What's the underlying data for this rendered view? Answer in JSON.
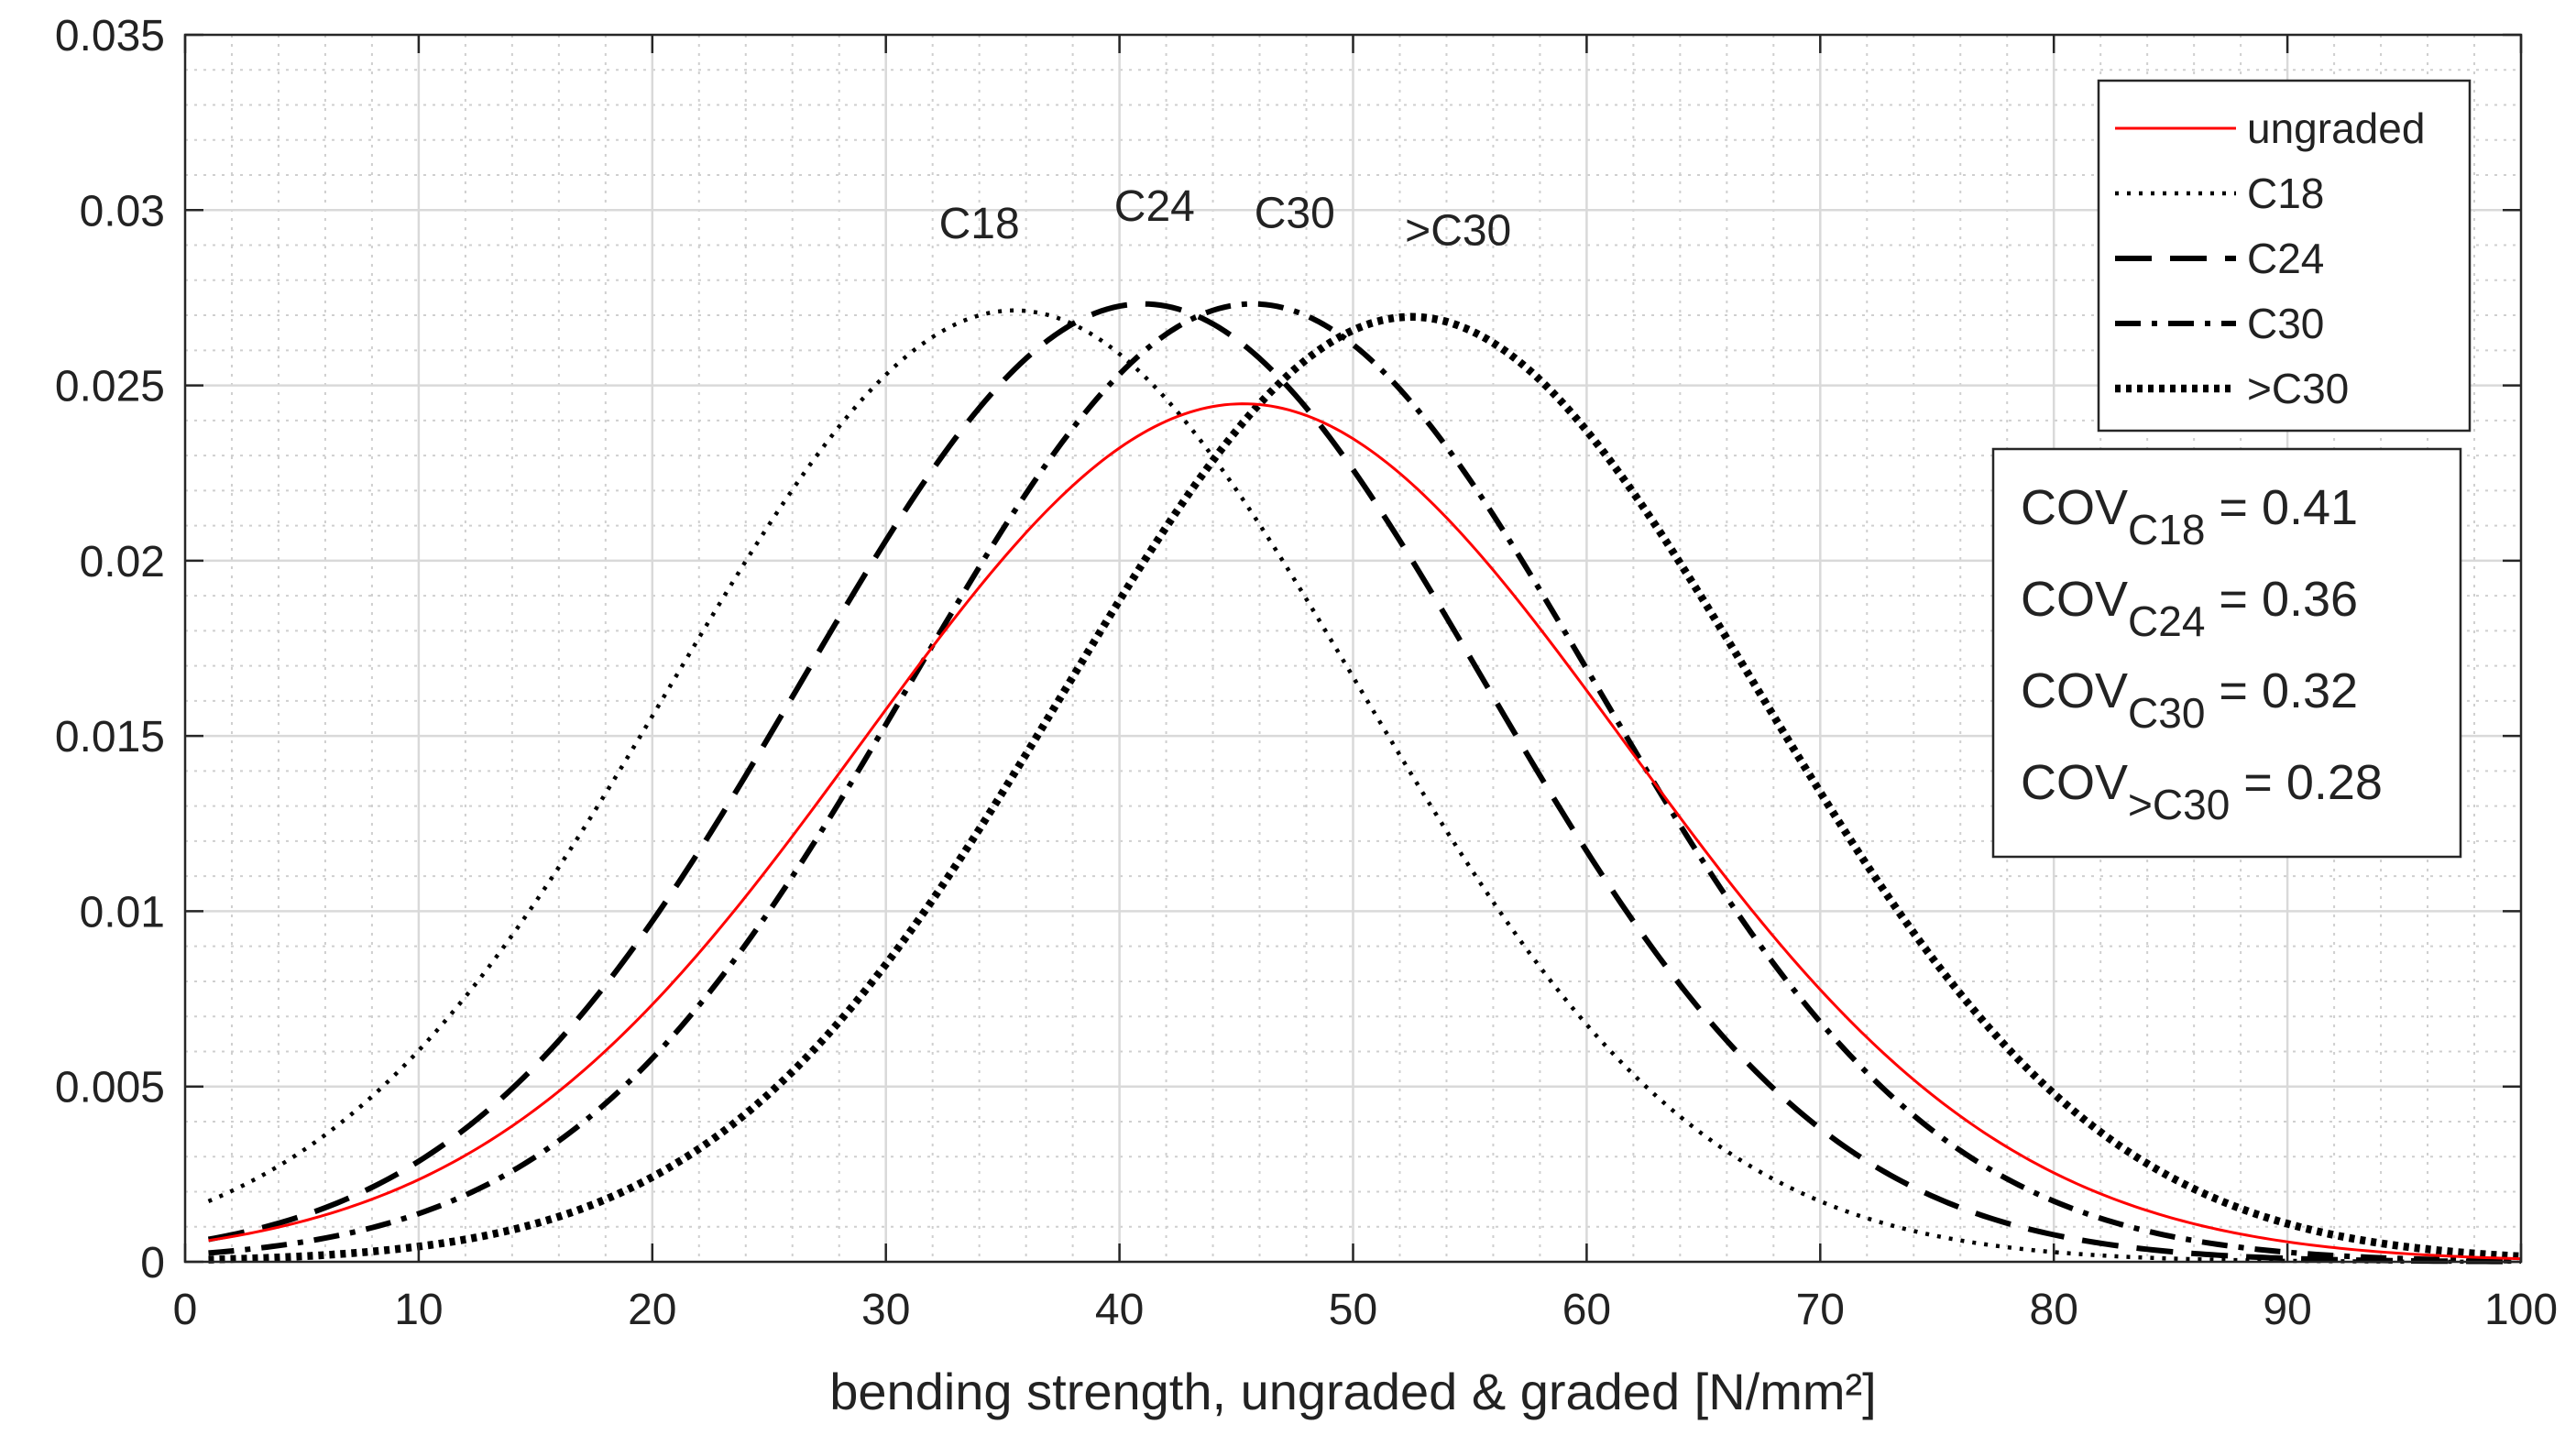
{
  "chart_data": {
    "type": "line",
    "xlabel": "bending strength, ungraded & graded [N/mm²]",
    "ylabel": "",
    "xlim": [
      0,
      100
    ],
    "ylim": [
      0,
      0.035
    ],
    "xticks": [
      0,
      10,
      20,
      30,
      40,
      50,
      60,
      70,
      80,
      90,
      100
    ],
    "xtick_labels": [
      "0",
      "10",
      "20",
      "30",
      "40",
      "50",
      "60",
      "70",
      "80",
      "90",
      "100"
    ],
    "yticks": [
      0,
      0.005,
      0.01,
      0.015,
      0.02,
      0.025,
      0.03,
      0.035
    ],
    "ytick_labels": [
      "0",
      "0.005",
      "0.01",
      "0.015",
      "0.02",
      "0.025",
      "0.03",
      "0.035"
    ],
    "grid": true,
    "minor_grid": true,
    "legend_position": "top-right",
    "series": [
      {
        "name": "ungraded",
        "distribution": "normal",
        "mean": 45.3,
        "sd": 16.3,
        "x_range": [
          1,
          100
        ],
        "color": "#ff0000",
        "style": "solid"
      },
      {
        "name": "C18",
        "distribution": "normal",
        "mean": 35.5,
        "sd": 14.7,
        "x_range": [
          1,
          100
        ],
        "color": "#000000",
        "style": "dotted"
      },
      {
        "name": "C24",
        "distribution": "normal",
        "mean": 41.0,
        "sd": 14.6,
        "x_range": [
          1,
          100
        ],
        "color": "#000000",
        "style": "dashed"
      },
      {
        "name": "C30",
        "distribution": "normal",
        "mean": 45.7,
        "sd": 14.6,
        "x_range": [
          1,
          100
        ],
        "color": "#000000",
        "style": "dashdot"
      },
      {
        "name": ">C30",
        "distribution": "normal",
        "mean": 52.5,
        "sd": 14.8,
        "x_range": [
          1,
          100
        ],
        "color": "#000000",
        "style": "dense-dotted"
      }
    ],
    "annotations": [
      {
        "text": "C18",
        "x": 34,
        "y": 0.0292
      },
      {
        "text": "C24",
        "x": 41.5,
        "y": 0.0297
      },
      {
        "text": "C30",
        "x": 47.5,
        "y": 0.0295
      },
      {
        "text": ">C30",
        "x": 54.5,
        "y": 0.029
      }
    ],
    "cov_box": [
      {
        "prefix": "COV",
        "sub": "C18",
        "value": "= 0.41"
      },
      {
        "prefix": "COV",
        "sub": "C24",
        "value": "= 0.36"
      },
      {
        "prefix": "COV",
        "sub": "C30",
        "value": "= 0.32"
      },
      {
        "prefix": "COV",
        "sub": ">C30",
        "value": "= 0.28"
      }
    ]
  }
}
